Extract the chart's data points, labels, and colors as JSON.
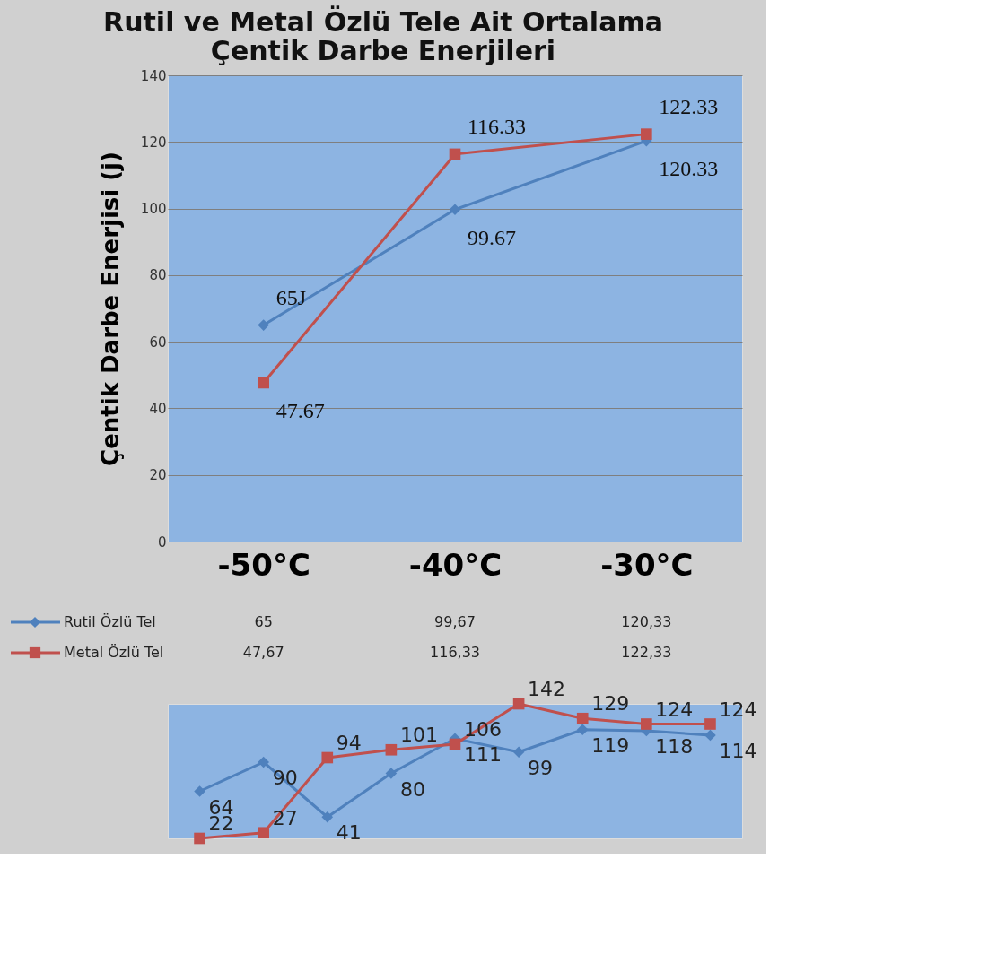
{
  "chart_data": [
    {
      "type": "line",
      "title": "Rutil ve Metal Özlü Tele Ait Ortalama\nÇentik Darbe Enerjileri",
      "ylabel": "Çentik Darbe Enerjisi (j)",
      "categories": [
        "-50°C",
        "-40°C",
        "-30°C"
      ],
      "ylim": [
        0,
        140
      ],
      "yticks": [
        0,
        20,
        40,
        60,
        80,
        100,
        120,
        140
      ],
      "grid": "y",
      "legend": "bottom",
      "series": [
        {
          "name": "Rutil Özlü Tel",
          "color": "#4f81bd",
          "marker": "diamond",
          "values": [
            65,
            99.67,
            120.33
          ],
          "value_labels": [
            "65",
            "99,67",
            "120,33"
          ]
        },
        {
          "name": "Metal Özlü Tel",
          "color": "#c0504d",
          "marker": "square",
          "values": [
            47.67,
            116.33,
            122.33
          ],
          "value_labels": [
            "47,67",
            "116,33",
            "122,33"
          ]
        }
      ],
      "annotations": [
        {
          "text": "65J",
          "x": "-50°C",
          "y": 65
        },
        {
          "text": "99.67",
          "x": "-40°C",
          "y": 99.67
        },
        {
          "text": "120.33",
          "x": "-30°C",
          "y": 120.33
        },
        {
          "text": "47.67",
          "x": "-50°C",
          "y": 47.67
        },
        {
          "text": "116.33",
          "x": "-40°C",
          "y": 116.33
        },
        {
          "text": "122.33",
          "x": "-30°C",
          "y": 122.33
        }
      ]
    },
    {
      "type": "line",
      "categories": [
        null,
        null,
        null,
        null,
        null,
        null,
        null,
        null,
        null
      ],
      "tick_labels": false,
      "data_labels": true,
      "series": [
        {
          "color": "#4f81bd",
          "marker": "diamond",
          "values": [
            64,
            90,
            41,
            80,
            111,
            99,
            119,
            118,
            114
          ]
        },
        {
          "color": "#c0504d",
          "marker": "square",
          "values": [
            22,
            27,
            94,
            101,
            106,
            142,
            129,
            124,
            124
          ]
        }
      ]
    }
  ]
}
